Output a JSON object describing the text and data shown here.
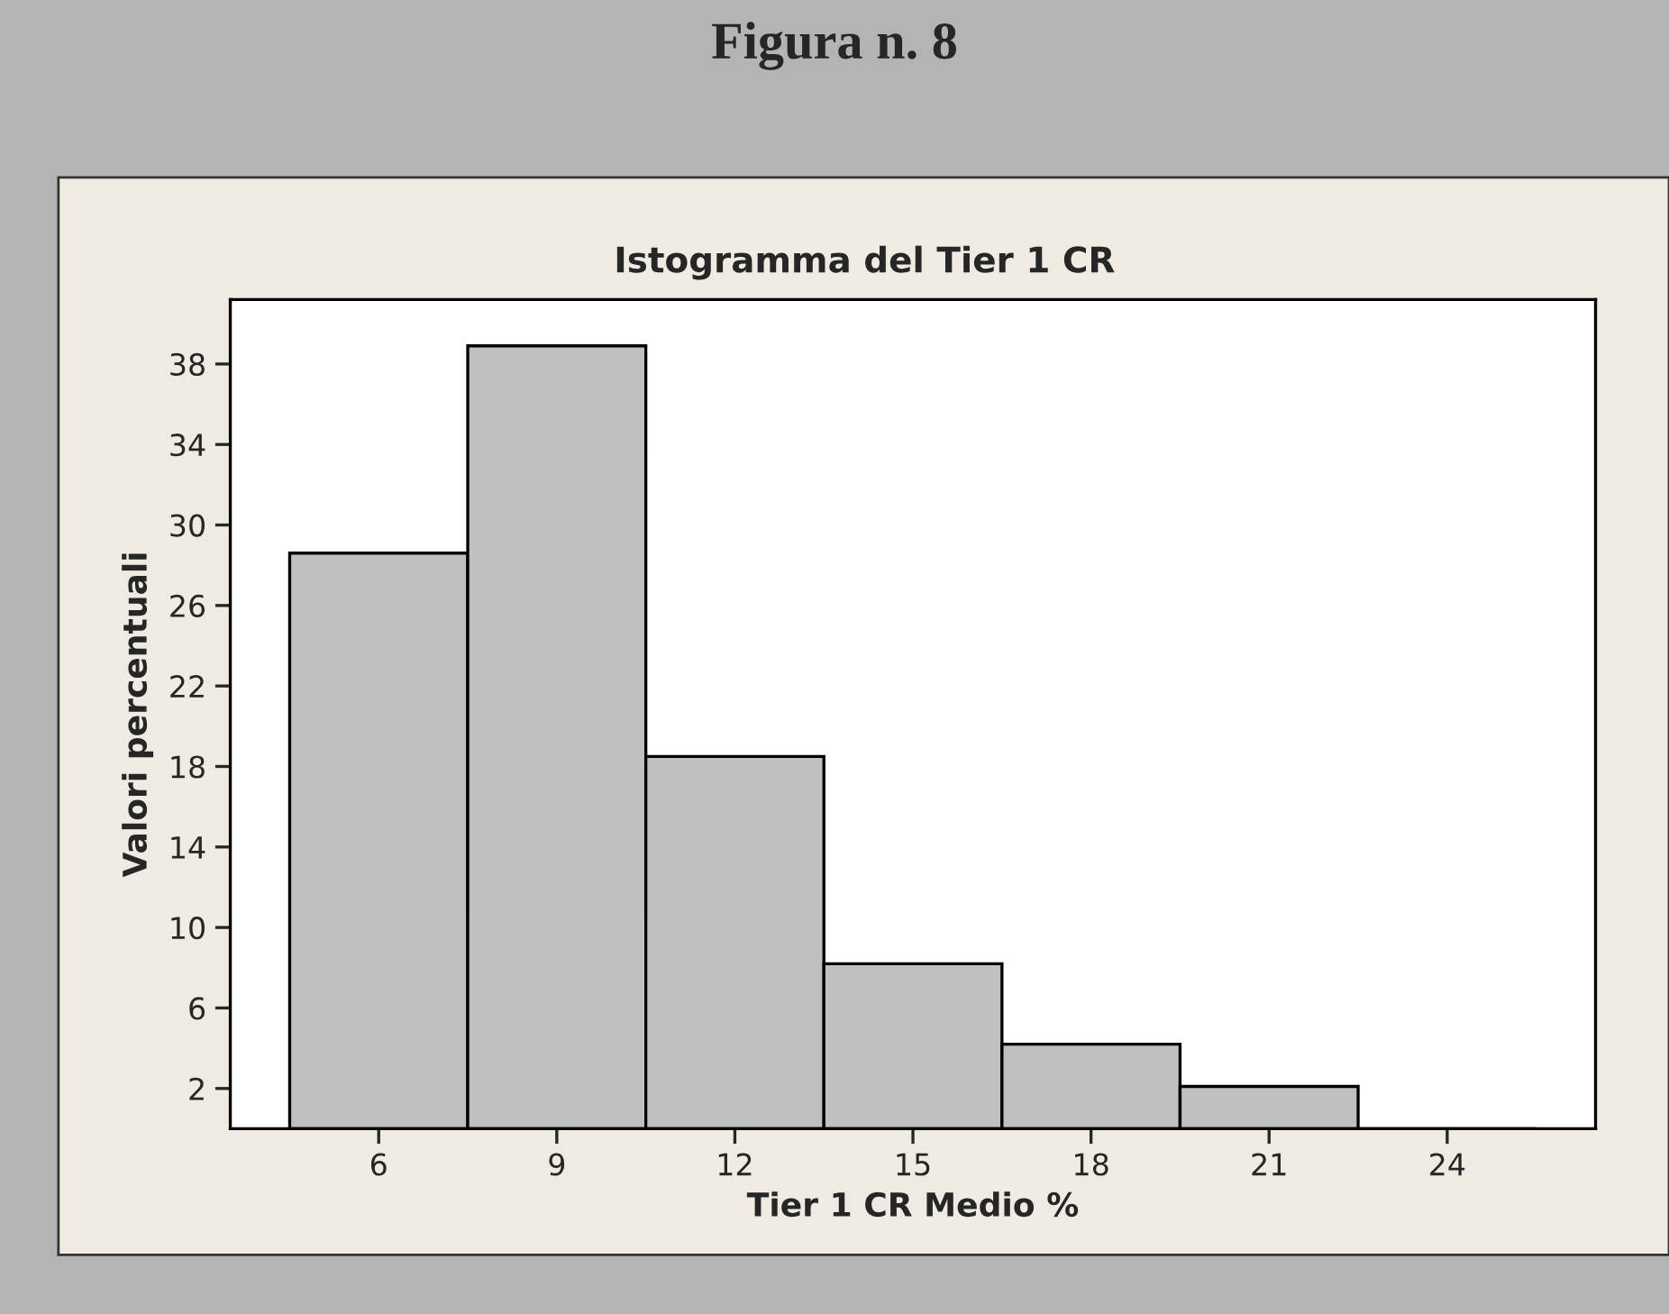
{
  "chart_data": {
    "type": "histogram",
    "title": "Figura n. 8",
    "subtitle": "Istogramma del Tier 1 CR",
    "xlabel": "Tier 1 CR Medio %",
    "ylabel": "Valori percentuali",
    "bins": [
      4.5,
      7.5,
      10.5,
      13.5,
      16.5,
      19.5,
      22.5,
      25.5
    ],
    "values": [
      28.6,
      38.9,
      18.5,
      8.2,
      4.2,
      2.1,
      0
    ],
    "color": "#c0c0c0",
    "xlim": [
      3.5,
      26.5
    ],
    "xticks": [
      6,
      9,
      12,
      15,
      18,
      21,
      24
    ],
    "ylim": [
      0,
      41.2
    ],
    "yticks": [
      2,
      6,
      10,
      14,
      18,
      22,
      26,
      30,
      34,
      38
    ],
    "grid": false,
    "legend": false
  }
}
